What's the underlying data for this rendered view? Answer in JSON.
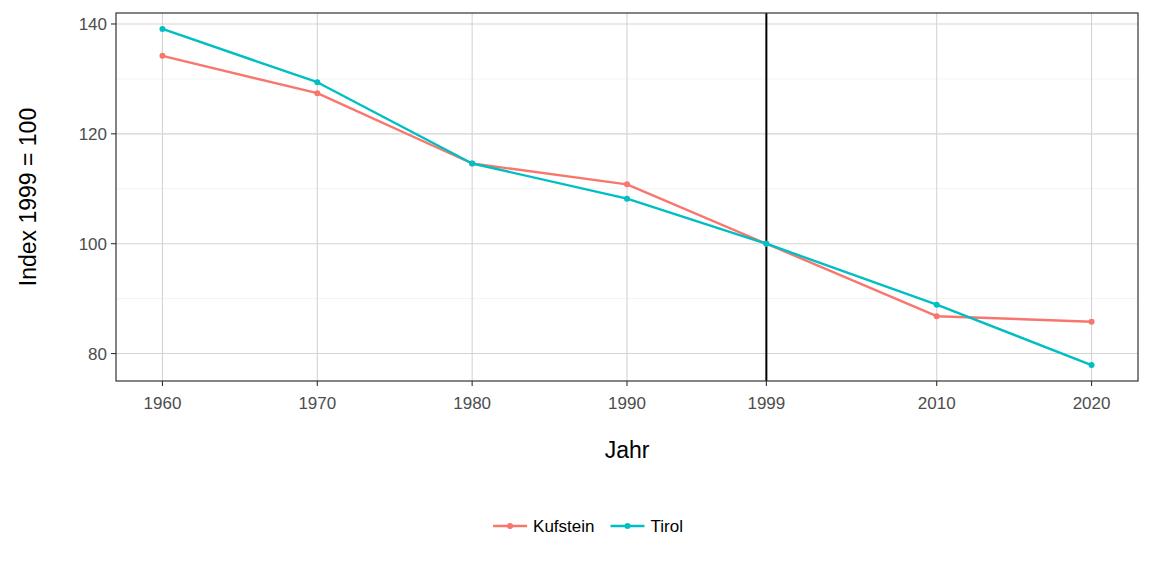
{
  "chart_data": {
    "type": "line",
    "x_label": "Jahr",
    "y_label": "Index 1999 = 100",
    "x": [
      1960,
      1970,
      1980,
      1990,
      1999,
      2010,
      2020
    ],
    "series": [
      {
        "name": "Kufstein",
        "color": "#F8766D",
        "marker": "circle",
        "values": [
          134.2,
          127.4,
          114.6,
          110.8,
          100,
          86.8,
          85.8
        ]
      },
      {
        "name": "Tirol",
        "color": "#00BFC4",
        "marker": "circle",
        "values": [
          139.1,
          129.4,
          114.6,
          108.2,
          100,
          88.9,
          77.9
        ]
      }
    ],
    "xlim": [
      1957,
      2023
    ],
    "xticks": [
      1960,
      1970,
      1980,
      1990,
      1999,
      2010,
      2020
    ],
    "ylim": [
      75,
      142
    ],
    "yticks": [
      80,
      100,
      120,
      140
    ],
    "vline": 1999,
    "grid": true,
    "legend": "bottom"
  }
}
